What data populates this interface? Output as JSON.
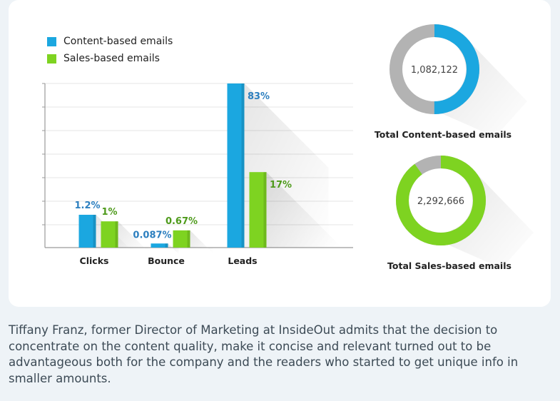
{
  "colors": {
    "content": "#1ba7e0",
    "sales": "#7ed321",
    "donut_gray": "#b3b3b3"
  },
  "legend": [
    {
      "label": "Content-based emails",
      "color": "#1ba7e0"
    },
    {
      "label": "Sales-based emails",
      "color": "#7ed321"
    }
  ],
  "chart_data": [
    {
      "type": "bar",
      "categories": [
        "Clicks",
        "Bounce",
        "Leads"
      ],
      "series": [
        {
          "name": "Content-based emails",
          "values": [
            1.2,
            0.087,
            83
          ],
          "labels": [
            "1.2%",
            "0.087%",
            "83%"
          ]
        },
        {
          "name": "Sales-based emails",
          "values": [
            1,
            0.67,
            17
          ],
          "labels": [
            "1%",
            "0.67%",
            "17%"
          ]
        }
      ],
      "displayed_heights_percent_of_axis": {
        "Content-based emails": [
          20,
          2.5,
          100
        ],
        "Sales-based emails": [
          16,
          10.5,
          46
        ]
      },
      "grid": true,
      "legend_position": "top-left"
    },
    {
      "type": "pie",
      "style": "donut",
      "center_label": "1,082,122",
      "caption": "Total Content-based emails",
      "highlight_fraction": 0.5,
      "colors": [
        "#1ba7e0",
        "#b3b3b3"
      ]
    },
    {
      "type": "pie",
      "style": "donut",
      "center_label": "2,292,666",
      "caption": "Total Sales-based emails",
      "highlight_fraction": 0.9,
      "colors": [
        "#7ed321",
        "#b3b3b3"
      ]
    }
  ],
  "caption_text": "Tiffany Franz, former Director of Marketing at InsideOut admits that the decision to concentrate on the content quality, make it concise and relevant turned out to be advantageous both for the company and the readers who started to get unique info in smaller amounts."
}
